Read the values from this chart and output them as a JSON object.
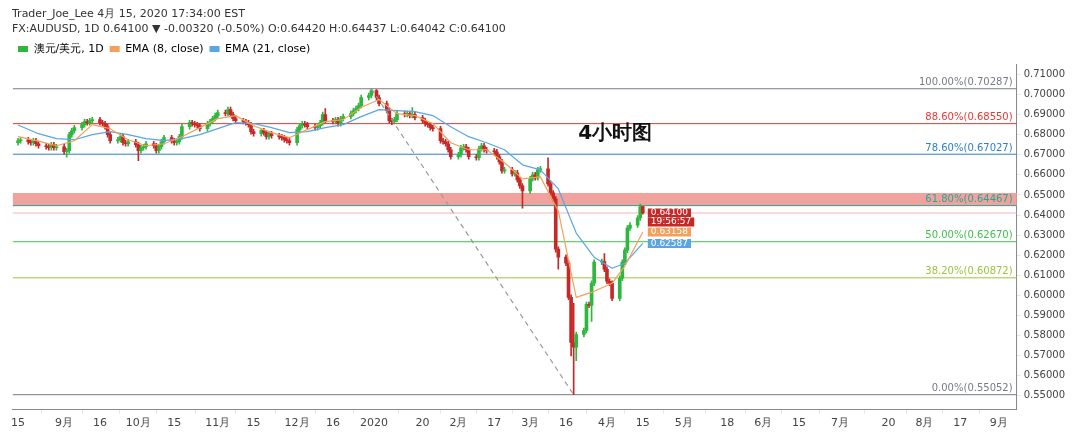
{
  "chart_data": {
    "type": "candlestick",
    "title": "Trader_Joe_Lee 4月 15, 2020 17:34:00 EST",
    "subtitle": "FX:AUDUSD, 1D 0.64100 ▼ -0.00320 (-0.50%) O:0.64420 H:0.64437 L:0.64042 C:0.64100",
    "xlim": [
      "2019-08-13",
      "2020-09-08"
    ],
    "xticks": [
      {
        "value": "2019-08-15",
        "label": "15"
      },
      {
        "value": "2019-09-02",
        "label": "9月"
      },
      {
        "value": "2019-09-16",
        "label": "16"
      },
      {
        "value": "2019-10-01",
        "label": "10月"
      },
      {
        "value": "2019-10-15",
        "label": "15"
      },
      {
        "value": "2019-11-01",
        "label": "11月"
      },
      {
        "value": "2019-11-15",
        "label": "15"
      },
      {
        "value": "2019-12-02",
        "label": "12月"
      },
      {
        "value": "2019-12-16",
        "label": "16"
      },
      {
        "value": "2020-01-01",
        "label": "2020"
      },
      {
        "value": "2020-01-20",
        "label": "20"
      },
      {
        "value": "2020-02-03",
        "label": "2月"
      },
      {
        "value": "2020-02-17",
        "label": "17"
      },
      {
        "value": "2020-03-02",
        "label": "3月"
      },
      {
        "value": "2020-03-16",
        "label": "16"
      },
      {
        "value": "2020-04-01",
        "label": "4月"
      },
      {
        "value": "2020-04-15",
        "label": "15"
      },
      {
        "value": "2020-05-01",
        "label": "5月"
      },
      {
        "value": "2020-05-18",
        "label": "18"
      },
      {
        "value": "2020-06-01",
        "label": "6月"
      },
      {
        "value": "2020-06-15",
        "label": "15"
      },
      {
        "value": "2020-07-01",
        "label": "7月"
      },
      {
        "value": "2020-07-20",
        "label": "20"
      },
      {
        "value": "2020-08-03",
        "label": "8月"
      },
      {
        "value": "2020-08-17",
        "label": "17"
      },
      {
        "value": "2020-09-01",
        "label": "9月"
      }
    ],
    "ylim": [
      0.543,
      0.715
    ],
    "yticks": [
      {
        "value": 0.55,
        "label": "0.55000"
      },
      {
        "value": 0.56,
        "label": "0.56000"
      },
      {
        "value": 0.57,
        "label": "0.57000"
      },
      {
        "value": 0.58,
        "label": "0.58000"
      },
      {
        "value": 0.59,
        "label": "0.59000"
      },
      {
        "value": 0.6,
        "label": "0.60000"
      },
      {
        "value": 0.61,
        "label": "0.61000"
      },
      {
        "value": 0.62,
        "label": "0.62000"
      },
      {
        "value": 0.63,
        "label": "0.63000"
      },
      {
        "value": 0.64,
        "label": "0.64000"
      },
      {
        "value": 0.65,
        "label": "0.65000"
      },
      {
        "value": 0.66,
        "label": "0.66000"
      },
      {
        "value": 0.67,
        "label": "0.67000"
      },
      {
        "value": 0.68,
        "label": "0.68000"
      },
      {
        "value": 0.69,
        "label": "0.69000"
      },
      {
        "value": 0.7,
        "label": "0.70000"
      },
      {
        "value": 0.71,
        "label": "0.71000"
      }
    ],
    "legend": "top left",
    "series": [
      {
        "name": "澳元/美元, 1D",
        "x": [
          "2019-08-15",
          "2019-08-16",
          "2019-08-19",
          "2019-08-20",
          "2019-08-21",
          "2019-08-22",
          "2019-08-23",
          "2019-08-26",
          "2019-08-27",
          "2019-08-28",
          "2019-08-29",
          "2019-08-30",
          "2019-09-02",
          "2019-09-03",
          "2019-09-04",
          "2019-09-05",
          "2019-09-06",
          "2019-09-09",
          "2019-09-10",
          "2019-09-11",
          "2019-09-12",
          "2019-09-13",
          "2019-09-16",
          "2019-09-17",
          "2019-09-18",
          "2019-09-19",
          "2019-09-20",
          "2019-09-23",
          "2019-09-24",
          "2019-09-25",
          "2019-09-26",
          "2019-09-27",
          "2019-09-30",
          "2019-10-01",
          "2019-10-02",
          "2019-10-03",
          "2019-10-04",
          "2019-10-07",
          "2019-10-08",
          "2019-10-09",
          "2019-10-10",
          "2019-10-11",
          "2019-10-14",
          "2019-10-15",
          "2019-10-16",
          "2019-10-17",
          "2019-10-18",
          "2019-10-21",
          "2019-10-22",
          "2019-10-23",
          "2019-10-24",
          "2019-10-25",
          "2019-10-28",
          "2019-10-29",
          "2019-10-30",
          "2019-10-31",
          "2019-11-01",
          "2019-11-04",
          "2019-11-05",
          "2019-11-06",
          "2019-11-07",
          "2019-11-08",
          "2019-11-11",
          "2019-11-12",
          "2019-11-13",
          "2019-11-14",
          "2019-11-15",
          "2019-11-18",
          "2019-11-19",
          "2019-11-20",
          "2019-11-21",
          "2019-11-22",
          "2019-11-25",
          "2019-11-26",
          "2019-11-27",
          "2019-11-28",
          "2019-11-29",
          "2019-12-02",
          "2019-12-03",
          "2019-12-04",
          "2019-12-05",
          "2019-12-06",
          "2019-12-09",
          "2019-12-10",
          "2019-12-11",
          "2019-12-12",
          "2019-12-13",
          "2019-12-16",
          "2019-12-17",
          "2019-12-18",
          "2019-12-19",
          "2019-12-20",
          "2019-12-23",
          "2019-12-24",
          "2019-12-25",
          "2019-12-26",
          "2019-12-27",
          "2019-12-30",
          "2019-12-31",
          "2020-01-02",
          "2020-01-03",
          "2020-01-06",
          "2020-01-07",
          "2020-01-08",
          "2020-01-09",
          "2020-01-10",
          "2020-01-13",
          "2020-01-14",
          "2020-01-15",
          "2020-01-16",
          "2020-01-17",
          "2020-01-20",
          "2020-01-21",
          "2020-01-22",
          "2020-01-23",
          "2020-01-24",
          "2020-01-27",
          "2020-01-28",
          "2020-01-29",
          "2020-01-30",
          "2020-01-31",
          "2020-02-03",
          "2020-02-04",
          "2020-02-05",
          "2020-02-06",
          "2020-02-07",
          "2020-02-10",
          "2020-02-11",
          "2020-02-12",
          "2020-02-13",
          "2020-02-14",
          "2020-02-17",
          "2020-02-18",
          "2020-02-19",
          "2020-02-20",
          "2020-02-21",
          "2020-02-24",
          "2020-02-25",
          "2020-02-26",
          "2020-02-27",
          "2020-02-28",
          "2020-03-02",
          "2020-03-03",
          "2020-03-04",
          "2020-03-05",
          "2020-03-06",
          "2020-03-09",
          "2020-03-10",
          "2020-03-11",
          "2020-03-12",
          "2020-03-13",
          "2020-03-16",
          "2020-03-17",
          "2020-03-18",
          "2020-03-19",
          "2020-03-20",
          "2020-03-23",
          "2020-03-24",
          "2020-03-25",
          "2020-03-26",
          "2020-03-27",
          "2020-03-30",
          "2020-03-31",
          "2020-04-01",
          "2020-04-02",
          "2020-04-03",
          "2020-04-06",
          "2020-04-07",
          "2020-04-08",
          "2020-04-09",
          "2020-04-10",
          "2020-04-13",
          "2020-04-14",
          "2020-04-15"
        ],
        "ohlc": [
          [
            0.676,
            0.6782,
            0.6748,
            0.677
          ],
          [
            0.677,
            0.6787,
            0.6758,
            0.6775
          ],
          [
            0.6775,
            0.6787,
            0.6753,
            0.6765
          ],
          [
            0.6765,
            0.6777,
            0.6748,
            0.676
          ],
          [
            0.676,
            0.6782,
            0.6748,
            0.677
          ],
          [
            0.677,
            0.6782,
            0.6743,
            0.6755
          ],
          [
            0.6755,
            0.6767,
            0.6733,
            0.6745
          ],
          [
            0.6745,
            0.6757,
            0.6728,
            0.674
          ],
          [
            0.674,
            0.6752,
            0.6723,
            0.6735
          ],
          [
            0.6735,
            0.6762,
            0.6723,
            0.675
          ],
          [
            0.675,
            0.6762,
            0.6723,
            0.6735
          ],
          [
            0.6735,
            0.6752,
            0.6723,
            0.674
          ],
          [
            0.674,
            0.6752,
            0.6703,
            0.6715
          ],
          [
            0.6715,
            0.6732,
            0.6688,
            0.672
          ],
          [
            0.672,
            0.6812,
            0.6708,
            0.68
          ],
          [
            0.68,
            0.6832,
            0.6788,
            0.682
          ],
          [
            0.682,
            0.6847,
            0.6808,
            0.6835
          ],
          [
            0.6835,
            0.6862,
            0.6823,
            0.685
          ],
          [
            0.685,
            0.6877,
            0.6838,
            0.6865
          ],
          [
            0.6865,
            0.6877,
            0.6848,
            0.686
          ],
          [
            0.686,
            0.6882,
            0.6848,
            0.687
          ],
          [
            0.687,
            0.6887,
            0.6858,
            0.6875
          ],
          [
            0.6875,
            0.6887,
            0.6848,
            0.686
          ],
          [
            0.686,
            0.6872,
            0.6843,
            0.6855
          ],
          [
            0.6855,
            0.6867,
            0.6828,
            0.684
          ],
          [
            0.684,
            0.6852,
            0.6788,
            0.68
          ],
          [
            0.68,
            0.6812,
            0.6758,
            0.677
          ],
          [
            0.677,
            0.6787,
            0.6758,
            0.6775
          ],
          [
            0.6775,
            0.6802,
            0.6763,
            0.679
          ],
          [
            0.679,
            0.6802,
            0.6748,
            0.676
          ],
          [
            0.676,
            0.6772,
            0.6743,
            0.6755
          ],
          [
            0.6755,
            0.6777,
            0.6743,
            0.6765
          ],
          [
            0.6765,
            0.6777,
            0.6738,
            0.675
          ],
          [
            0.675,
            0.6762,
            0.667,
            0.672
          ],
          [
            0.672,
            0.6747,
            0.6708,
            0.6735
          ],
          [
            0.6735,
            0.6752,
            0.6723,
            0.674
          ],
          [
            0.674,
            0.6767,
            0.6728,
            0.6755
          ],
          [
            0.6755,
            0.6767,
            0.6733,
            0.6745
          ],
          [
            0.6745,
            0.6757,
            0.6708,
            0.672
          ],
          [
            0.672,
            0.6752,
            0.6708,
            0.674
          ],
          [
            0.674,
            0.6777,
            0.6728,
            0.6765
          ],
          [
            0.6765,
            0.6797,
            0.6753,
            0.6785
          ],
          [
            0.6785,
            0.6797,
            0.6758,
            0.677
          ],
          [
            0.677,
            0.6782,
            0.6748,
            0.676
          ],
          [
            0.676,
            0.6777,
            0.6748,
            0.6765
          ],
          [
            0.6765,
            0.6802,
            0.6753,
            0.679
          ],
          [
            0.679,
            0.6852,
            0.6778,
            0.684
          ],
          [
            0.684,
            0.6872,
            0.6828,
            0.686
          ],
          [
            0.686,
            0.6872,
            0.6843,
            0.6855
          ],
          [
            0.6855,
            0.6867,
            0.6838,
            0.685
          ],
          [
            0.685,
            0.6862,
            0.6833,
            0.6845
          ],
          [
            0.6845,
            0.6857,
            0.6818,
            0.683
          ],
          [
            0.683,
            0.6867,
            0.6818,
            0.6855
          ],
          [
            0.6855,
            0.6877,
            0.6843,
            0.6865
          ],
          [
            0.6865,
            0.6892,
            0.6853,
            0.688
          ],
          [
            0.688,
            0.6907,
            0.6868,
            0.6895
          ],
          [
            0.6895,
            0.6922,
            0.6883,
            0.691
          ],
          [
            0.691,
            0.6922,
            0.6893,
            0.6905
          ],
          [
            0.6905,
            0.6937,
            0.6893,
            0.6925
          ],
          [
            0.6925,
            0.6937,
            0.6888,
            0.69
          ],
          [
            0.69,
            0.6912,
            0.6868,
            0.688
          ],
          [
            0.688,
            0.6892,
            0.6858,
            0.687
          ],
          [
            0.687,
            0.6882,
            0.6853,
            0.6865
          ],
          [
            0.6865,
            0.6877,
            0.6848,
            0.686
          ],
          [
            0.686,
            0.6872,
            0.6838,
            0.685
          ],
          [
            0.685,
            0.6862,
            0.6803,
            0.6815
          ],
          [
            0.6815,
            0.6827,
            0.6793,
            0.6805
          ],
          [
            0.6805,
            0.6832,
            0.6793,
            0.682
          ],
          [
            0.682,
            0.6832,
            0.6798,
            0.681
          ],
          [
            0.681,
            0.6822,
            0.6778,
            0.679
          ],
          [
            0.679,
            0.6817,
            0.6778,
            0.6805
          ],
          [
            0.6805,
            0.6817,
            0.6783,
            0.6795
          ],
          [
            0.6795,
            0.6807,
            0.6778,
            0.679
          ],
          [
            0.679,
            0.6802,
            0.6773,
            0.6785
          ],
          [
            0.6785,
            0.6797,
            0.6763,
            0.6775
          ],
          [
            0.6775,
            0.6787,
            0.6758,
            0.677
          ],
          [
            0.677,
            0.6782,
            0.6748,
            0.676
          ],
          [
            0.676,
            0.6837,
            0.6748,
            0.6825
          ],
          [
            0.6825,
            0.6857,
            0.6813,
            0.6845
          ],
          [
            0.6845,
            0.6867,
            0.6833,
            0.6855
          ],
          [
            0.6855,
            0.6867,
            0.6838,
            0.685
          ],
          [
            0.685,
            0.6862,
            0.6828,
            0.684
          ],
          [
            0.684,
            0.6852,
            0.6823,
            0.6835
          ],
          [
            0.6835,
            0.6857,
            0.6823,
            0.6845
          ],
          [
            0.6845,
            0.6872,
            0.6833,
            0.686
          ],
          [
            0.686,
            0.6912,
            0.6848,
            0.69
          ],
          [
            0.69,
            0.693,
            0.6858,
            0.687
          ],
          [
            0.687,
            0.6882,
            0.6853,
            0.6865
          ],
          [
            0.6865,
            0.6887,
            0.6853,
            0.6875
          ],
          [
            0.6875,
            0.6887,
            0.6843,
            0.6855
          ],
          [
            0.6855,
            0.6892,
            0.6843,
            0.688
          ],
          [
            0.688,
            0.6902,
            0.6868,
            0.689
          ],
          [
            0.689,
            0.6917,
            0.6878,
            0.6905
          ],
          [
            0.6905,
            0.6932,
            0.6893,
            0.692
          ],
          [
            0.692,
            0.6942,
            0.6908,
            0.693
          ],
          [
            0.693,
            0.6957,
            0.6918,
            0.6945
          ],
          [
            0.6945,
            0.6997,
            0.6933,
            0.6985
          ],
          [
            0.6985,
            0.7007,
            0.6973,
            0.6995
          ],
          [
            0.6995,
            0.70287,
            0.6983,
            0.702
          ],
          [
            0.702,
            0.7025,
            0.6973,
            0.6985
          ],
          [
            0.6985,
            0.6997,
            0.6943,
            0.6955
          ],
          [
            0.6955,
            0.6967,
            0.6908,
            0.692
          ],
          [
            0.692,
            0.6932,
            0.6858,
            0.687
          ],
          [
            0.687,
            0.6882,
            0.685,
            0.6865
          ],
          [
            0.6865,
            0.6887,
            0.6853,
            0.6875
          ],
          [
            0.6875,
            0.6917,
            0.6863,
            0.6905
          ],
          [
            0.6905,
            0.6917,
            0.6888,
            0.69
          ],
          [
            0.69,
            0.6917,
            0.6888,
            0.6905
          ],
          [
            0.6905,
            0.6917,
            0.6883,
            0.6895
          ],
          [
            0.6895,
            0.6935,
            0.6883,
            0.69
          ],
          [
            0.69,
            0.6912,
            0.6873,
            0.6885
          ],
          [
            0.6885,
            0.6897,
            0.6858,
            0.687
          ],
          [
            0.687,
            0.6882,
            0.6843,
            0.6855
          ],
          [
            0.6855,
            0.6867,
            0.6838,
            0.685
          ],
          [
            0.685,
            0.6862,
            0.6823,
            0.6835
          ],
          [
            0.6835,
            0.6847,
            0.6818,
            0.683
          ],
          [
            0.683,
            0.6842,
            0.6758,
            0.677
          ],
          [
            0.677,
            0.6782,
            0.6753,
            0.6765
          ],
          [
            0.6765,
            0.6777,
            0.6743,
            0.6755
          ],
          [
            0.6755,
            0.6767,
            0.6713,
            0.6725
          ],
          [
            0.6725,
            0.6737,
            0.6678,
            0.669
          ],
          [
            0.669,
            0.6712,
            0.6678,
            0.67
          ],
          [
            0.67,
            0.6747,
            0.6688,
            0.6735
          ],
          [
            0.6735,
            0.6752,
            0.6723,
            0.674
          ],
          [
            0.674,
            0.6752,
            0.6713,
            0.6725
          ],
          [
            0.6725,
            0.6737,
            0.6678,
            0.669
          ],
          [
            0.669,
            0.6702,
            0.6673,
            0.6685
          ],
          [
            0.6685,
            0.6742,
            0.6673,
            0.673
          ],
          [
            0.673,
            0.6757,
            0.6718,
            0.6745
          ],
          [
            0.6745,
            0.6757,
            0.6713,
            0.6725
          ],
          [
            0.6725,
            0.6737,
            0.6708,
            0.672
          ],
          [
            0.672,
            0.6732,
            0.6703,
            0.6715
          ],
          [
            0.6715,
            0.6727,
            0.6678,
            0.669
          ],
          [
            0.669,
            0.6702,
            0.6653,
            0.6665
          ],
          [
            0.6665,
            0.6677,
            0.6608,
            0.662
          ],
          [
            0.662,
            0.6637,
            0.6608,
            0.6625
          ],
          [
            0.6625,
            0.6637,
            0.6593,
            0.6605
          ],
          [
            0.6605,
            0.6622,
            0.6593,
            0.661
          ],
          [
            0.661,
            0.6622,
            0.6563,
            0.6575
          ],
          [
            0.6575,
            0.6587,
            0.6533,
            0.6545
          ],
          [
            0.6545,
            0.6557,
            0.6434,
            0.652
          ],
          [
            0.652,
            0.6592,
            0.6508,
            0.658
          ],
          [
            0.658,
            0.6612,
            0.6568,
            0.66
          ],
          [
            0.66,
            0.6612,
            0.6573,
            0.6585
          ],
          [
            0.6585,
            0.6637,
            0.6573,
            0.6625
          ],
          [
            0.6625,
            0.6642,
            0.6613,
            0.663
          ],
          [
            0.663,
            0.6685,
            0.6543,
            0.6555
          ],
          [
            0.6555,
            0.6567,
            0.6498,
            0.651
          ],
          [
            0.651,
            0.6522,
            0.6468,
            0.648
          ],
          [
            0.648,
            0.6492,
            0.6215,
            0.623
          ],
          [
            0.623,
            0.6242,
            0.613,
            0.619
          ],
          [
            0.619,
            0.6202,
            0.6148,
            0.616
          ],
          [
            0.616,
            0.6172,
            0.5978,
            0.599
          ],
          [
            0.599,
            0.6002,
            0.5698,
            0.5765
          ],
          [
            0.5765,
            0.596,
            0.55052,
            0.5742
          ],
          [
            0.5742,
            0.5817,
            0.5675,
            0.5805
          ],
          [
            0.5805,
            0.5837,
            0.5793,
            0.5825
          ],
          [
            0.5825,
            0.5967,
            0.5813,
            0.5955
          ],
          [
            0.5955,
            0.5967,
            0.5938,
            0.595
          ],
          [
            0.595,
            0.6072,
            0.587,
            0.606
          ],
          [
            0.606,
            0.6177,
            0.6048,
            0.6165
          ],
          [
            0.6165,
            0.618,
            0.6153,
            0.6168
          ],
          [
            0.6168,
            0.6208,
            0.6118,
            0.613
          ],
          [
            0.613,
            0.6142,
            0.6058,
            0.607
          ],
          [
            0.607,
            0.6082,
            0.6048,
            0.606
          ],
          [
            0.606,
            0.6072,
            0.5973,
            0.5985
          ],
          [
            0.5985,
            0.6097,
            0.5973,
            0.6085
          ],
          [
            0.6085,
            0.6177,
            0.6073,
            0.6165
          ],
          [
            0.6165,
            0.6237,
            0.6153,
            0.6225
          ],
          [
            0.6225,
            0.6347,
            0.6213,
            0.6335
          ],
          [
            0.6335,
            0.6362,
            0.6323,
            0.635
          ],
          [
            0.635,
            0.6397,
            0.6338,
            0.6385
          ],
          [
            0.6385,
            0.6454,
            0.6373,
            0.6442
          ],
          [
            0.6442,
            0.64437,
            0.64042,
            0.641
          ]
        ],
        "colors": [
          "#2db83d",
          "#2db83d",
          "#c62828",
          "#c62828",
          "#2db83d",
          "#c62828",
          "#c62828",
          "#c62828",
          "#c62828",
          "#2db83d",
          "#c62828",
          "#2db83d",
          "#c62828",
          "#2db83d",
          "#2db83d",
          "#2db83d",
          "#2db83d",
          "#2db83d",
          "#2db83d",
          "#c62828",
          "#2db83d",
          "#2db83d",
          "#c62828",
          "#c62828",
          "#c62828",
          "#c62828",
          "#c62828",
          "#2db83d",
          "#2db83d",
          "#c62828",
          "#c62828",
          "#2db83d",
          "#c62828",
          "#c62828",
          "#2db83d",
          "#2db83d",
          "#2db83d",
          "#c62828",
          "#c62828",
          "#2db83d",
          "#2db83d",
          "#2db83d",
          "#c62828",
          "#c62828",
          "#2db83d",
          "#2db83d",
          "#2db83d",
          "#2db83d",
          "#c62828",
          "#c62828",
          "#c62828",
          "#c62828",
          "#2db83d",
          "#2db83d",
          "#2db83d",
          "#2db83d",
          "#2db83d",
          "#c62828",
          "#2db83d",
          "#c62828",
          "#c62828",
          "#c62828",
          "#c62828",
          "#c62828",
          "#c62828",
          "#c62828",
          "#c62828",
          "#2db83d",
          "#c62828",
          "#c62828",
          "#2db83d",
          "#c62828",
          "#c62828",
          "#c62828",
          "#c62828",
          "#c62828",
          "#c62828",
          "#2db83d",
          "#2db83d",
          "#2db83d",
          "#c62828",
          "#c62828",
          "#c62828",
          "#2db83d",
          "#2db83d",
          "#2db83d",
          "#c62828",
          "#c62828",
          "#2db83d",
          "#c62828",
          "#2db83d",
          "#2db83d",
          "#2db83d",
          "#2db83d",
          "#2db83d",
          "#2db83d",
          "#2db83d",
          "#2db83d",
          "#2db83d",
          "#c62828",
          "#c62828",
          "#c62828",
          "#c62828",
          "#c62828",
          "#2db83d",
          "#2db83d",
          "#c62828",
          "#2db83d",
          "#c62828",
          "#2db83d",
          "#c62828",
          "#c62828",
          "#c62828",
          "#c62828",
          "#c62828",
          "#c62828",
          "#c62828",
          "#c62828",
          "#c62828",
          "#c62828",
          "#c62828",
          "#2db83d",
          "#2db83d",
          "#2db83d",
          "#c62828",
          "#c62828",
          "#c62828",
          "#2db83d",
          "#2db83d",
          "#c62828",
          "#c62828",
          "#c62828",
          "#c62828",
          "#c62828",
          "#c62828",
          "#2db83d",
          "#c62828",
          "#2db83d",
          "#c62828",
          "#c62828",
          "#c62828",
          "#2db83d",
          "#2db83d",
          "#c62828",
          "#2db83d",
          "#2db83d",
          "#c62828",
          "#c62828",
          "#c62828",
          "#c62828",
          "#c62828",
          "#c62828",
          "#c62828",
          "#c62828",
          "#c62828",
          "#2db83d",
          "#2db83d",
          "#2db83d",
          "#c62828",
          "#2db83d",
          "#2db83d",
          "#2db83d",
          "#c62828",
          "#c62828",
          "#c62828",
          "#c62828",
          "#2db83d",
          "#2db83d",
          "#2db83d",
          "#2db83d",
          "#2db83d",
          "#2db83d",
          "#2db83d",
          "#c62828"
        ],
        "value_labels": [
          null,
          null,
          null,
          null,
          null,
          null,
          null,
          null,
          null,
          null,
          null,
          null,
          null,
          null,
          null,
          null,
          null,
          null,
          null,
          null,
          null,
          null,
          null,
          null,
          null,
          null,
          null,
          null,
          null,
          null,
          null,
          null,
          null,
          null,
          null,
          null,
          null,
          null,
          null,
          null,
          null,
          null,
          null,
          null,
          null,
          null,
          null,
          null,
          null,
          null,
          null,
          null,
          null,
          null,
          null,
          null,
          null,
          null,
          null,
          null,
          null,
          null,
          null,
          null,
          null,
          null,
          null,
          null,
          null,
          null,
          null,
          null,
          null,
          null,
          null,
          null,
          null,
          null,
          null,
          null,
          null,
          null,
          null,
          null,
          null,
          null,
          null,
          null,
          null,
          null,
          null,
          null,
          null,
          null,
          null,
          null,
          null,
          null,
          null,
          null,
          null,
          null,
          null,
          null,
          null,
          null,
          null,
          null,
          null,
          null,
          null,
          null,
          null,
          null,
          null,
          null,
          null,
          null,
          null,
          null,
          null,
          null,
          null,
          null,
          null,
          null,
          null,
          null,
          null,
          null,
          null,
          null,
          null,
          null,
          null,
          null,
          null,
          null,
          null,
          null,
          null,
          null,
          null,
          null,
          null,
          null,
          null,
          null,
          null,
          null,
          null,
          null,
          null,
          null,
          null,
          null,
          null,
          null,
          null,
          null,
          null,
          null,
          null,
          null,
          null,
          null,
          null,
          null,
          null,
          null,
          null,
          null,
          null,
          "0.64100"
        ]
      },
      {
        "type": "line",
        "name": "EMA (8, close)",
        "color": "#f5a05a",
        "x": [
          "2019-08-15",
          "2019-08-23",
          "2019-08-30",
          "2019-09-06",
          "2019-09-13",
          "2019-09-20",
          "2019-09-27",
          "2019-10-04",
          "2019-10-11",
          "2019-10-18",
          "2019-10-25",
          "2019-11-01",
          "2019-11-08",
          "2019-11-15",
          "2019-11-22",
          "2019-11-29",
          "2019-12-06",
          "2019-12-13",
          "2019-12-20",
          "2019-12-27",
          "2020-01-03",
          "2020-01-10",
          "2020-01-17",
          "2020-01-24",
          "2020-01-31",
          "2020-02-07",
          "2020-02-14",
          "2020-02-21",
          "2020-02-28",
          "2020-03-06",
          "2020-03-13",
          "2020-03-20",
          "2020-03-27",
          "2020-04-03",
          "2020-04-08",
          "2020-04-15"
        ],
        "values": [
          0.679,
          0.6768,
          0.6745,
          0.677,
          0.685,
          0.683,
          0.6775,
          0.6745,
          0.6755,
          0.679,
          0.6835,
          0.688,
          0.6895,
          0.6845,
          0.681,
          0.6785,
          0.6825,
          0.6865,
          0.6875,
          0.6935,
          0.6975,
          0.6905,
          0.6895,
          0.6855,
          0.676,
          0.6725,
          0.6725,
          0.666,
          0.658,
          0.659,
          0.642,
          0.599,
          0.602,
          0.606,
          0.6145,
          0.63158
        ],
        "value_labels": [
          null,
          null,
          null,
          null,
          null,
          null,
          null,
          null,
          null,
          null,
          null,
          null,
          null,
          null,
          null,
          null,
          null,
          null,
          null,
          null,
          null,
          null,
          null,
          null,
          null,
          null,
          null,
          null,
          null,
          null,
          null,
          null,
          null,
          null,
          null,
          "0.63158"
        ]
      },
      {
        "type": "line",
        "name": "EMA (21, close)",
        "color": "#5aa5e6",
        "x": [
          "2019-08-15",
          "2019-08-23",
          "2019-08-30",
          "2019-09-06",
          "2019-09-13",
          "2019-09-20",
          "2019-09-27",
          "2019-10-04",
          "2019-10-11",
          "2019-10-18",
          "2019-10-25",
          "2019-11-01",
          "2019-11-08",
          "2019-11-15",
          "2019-11-22",
          "2019-11-29",
          "2019-12-06",
          "2019-12-13",
          "2019-12-20",
          "2019-12-27",
          "2020-01-03",
          "2020-01-10",
          "2020-01-17",
          "2020-01-24",
          "2020-01-31",
          "2020-02-07",
          "2020-02-14",
          "2020-02-21",
          "2020-02-28",
          "2020-03-06",
          "2020-03-13",
          "2020-03-20",
          "2020-03-27",
          "2020-04-03",
          "2020-04-08",
          "2020-04-15"
        ],
        "values": [
          0.6848,
          0.6805,
          0.678,
          0.6775,
          0.68,
          0.6815,
          0.68,
          0.678,
          0.677,
          0.678,
          0.68,
          0.683,
          0.686,
          0.6855,
          0.6835,
          0.681,
          0.6815,
          0.6835,
          0.685,
          0.689,
          0.6925,
          0.692,
          0.6915,
          0.6895,
          0.684,
          0.679,
          0.676,
          0.6725,
          0.665,
          0.6625,
          0.653,
          0.631,
          0.619,
          0.6135,
          0.616,
          0.62587
        ],
        "value_labels": [
          null,
          null,
          null,
          null,
          null,
          null,
          null,
          null,
          null,
          null,
          null,
          null,
          null,
          null,
          null,
          null,
          null,
          null,
          null,
          null,
          null,
          null,
          null,
          null,
          null,
          null,
          null,
          null,
          null,
          null,
          null,
          null,
          null,
          null,
          null,
          "0.62587"
        ]
      },
      {
        "type": "line",
        "color": "#9a9a9a",
        "line_style": "dashed",
        "x": [
          "2019-12-31",
          "2020-03-19"
        ],
        "values": [
          0.70287,
          0.55052
        ]
      }
    ],
    "ref_lines": [
      {
        "axis": "y",
        "value": 0.70287,
        "label": "100.00%(0.70287)",
        "color": "#787b86"
      },
      {
        "axis": "y",
        "value": 0.6855,
        "label": "88.60%(0.68550)",
        "color": "#e53935"
      },
      {
        "axis": "y",
        "value": 0.67027,
        "label": "78.60%(0.67027)",
        "color": "#2f80c8"
      },
      {
        "axis": "y",
        "value": 0.64467,
        "label": "61.80%(0.64467)",
        "color": "#26a69a"
      },
      {
        "axis": "y",
        "value": 0.6267,
        "label": "50.00%(0.62670)",
        "color": "#3fbf50"
      },
      {
        "axis": "y",
        "value": 0.60872,
        "label": "38.20%(0.60872)",
        "color": "#9bc53d"
      },
      {
        "axis": "y",
        "value": 0.55052,
        "label": "0.00%(0.55052)",
        "color": "#787b86"
      },
      {
        "axis": "y",
        "value": 0.641,
        "color": "#f3b4b4"
      }
    ],
    "bands": [
      {
        "axis": "y",
        "from": 0.6445,
        "to": 0.651,
        "color": "#f2a29c"
      }
    ],
    "annotations": [
      "4小时图",
      "19:56:57"
    ]
  }
}
